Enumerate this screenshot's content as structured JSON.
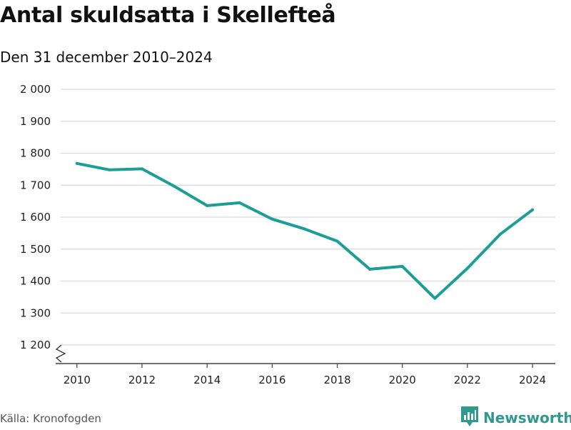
{
  "header": {
    "title": "Antal skuldsatta i Skellefteå",
    "subtitle": "Den 31 december 2010–2024"
  },
  "footer": {
    "source": "Källa: Kronofogden",
    "brand": "Newsworthy"
  },
  "colors": {
    "line": "#1a9e96",
    "grid": "#d9d9d9",
    "brand": "#2e9a8f"
  },
  "icons": {
    "brand_logo": "newsworthy-logo-icon",
    "axis_break": "axis-break-icon"
  },
  "chart_data": {
    "type": "line",
    "title": "Antal skuldsatta i Skellefteå",
    "subtitle": "Den 31 december 2010–2024",
    "xlabel": "",
    "ylabel": "",
    "x": [
      2010,
      2011,
      2012,
      2013,
      2014,
      2015,
      2016,
      2017,
      2018,
      2019,
      2020,
      2021,
      2022,
      2023,
      2024
    ],
    "series": [
      {
        "values": [
          1768,
          1748,
          1751,
          1696,
          1636,
          1645,
          1594,
          1563,
          1525,
          1437,
          1446,
          1346,
          1440,
          1546,
          1623
        ]
      }
    ],
    "xticks": [
      2010,
      2012,
      2014,
      2016,
      2018,
      2020,
      2022,
      2024
    ],
    "xtick_labels": [
      "2010",
      "2012",
      "2014",
      "2016",
      "2018",
      "2020",
      "2022",
      "2024"
    ],
    "yticks": [
      1200,
      1300,
      1400,
      1500,
      1600,
      1700,
      1800,
      1900,
      2000
    ],
    "ytick_labels": [
      "1 200",
      "1 300",
      "1 400",
      "1 500",
      "1 600",
      "1 700",
      "1 800",
      "1 900",
      "2 000"
    ],
    "ylim": [
      1200,
      2000
    ],
    "xlim": [
      2009.5,
      2024.7
    ],
    "grid": true,
    "axis_break": true
  }
}
